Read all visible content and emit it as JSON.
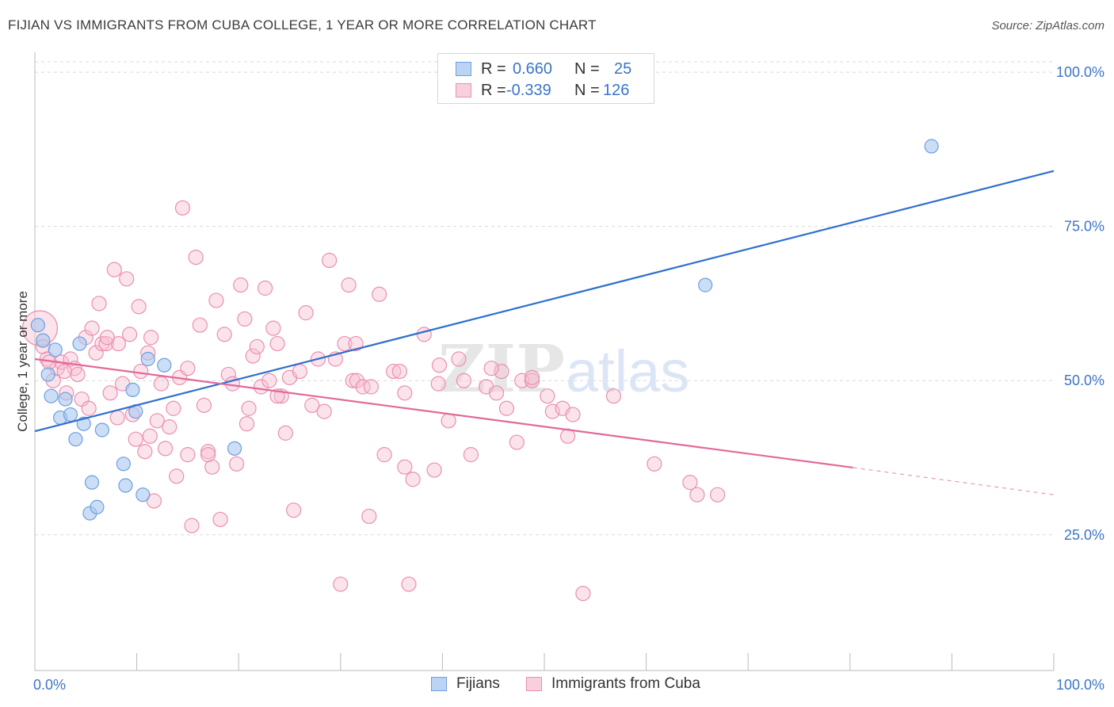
{
  "header": {
    "title": "FIJIAN VS IMMIGRANTS FROM CUBA COLLEGE, 1 YEAR OR MORE CORRELATION CHART",
    "source_label": "Source: ZipAtlas.com"
  },
  "watermark": {
    "zip": "ZIP",
    "atlas": "atlas"
  },
  "legend": {
    "rows": [
      {
        "r_label": "R =",
        "r_value": "0.660",
        "n_label": "N =",
        "n_value": "25"
      },
      {
        "r_label": "R =",
        "r_value": "-0.339",
        "n_label": "N =",
        "n_value": "126"
      }
    ]
  },
  "bottom_legend": {
    "series1": "Fijians",
    "series2": "Immigrants from Cuba"
  },
  "colors": {
    "blue_fill": "#a9c8f0",
    "blue_stroke": "#6d9fe0",
    "blue_line": "#2f6fcf",
    "pink_fill": "#f7c0d2",
    "pink_stroke": "#ea8faf",
    "pink_line": "#e2699a",
    "tick_label": "#3b74c9",
    "grid": "#d9d9d9"
  },
  "chart_data": {
    "type": "scatter",
    "title": "FIJIAN VS IMMIGRANTS FROM CUBA COLLEGE, 1 YEAR OR MORE CORRELATION CHART",
    "xlabel": "",
    "ylabel": "College, 1 year or more",
    "xlim": [
      0,
      100
    ],
    "ylim": [
      3,
      104
    ],
    "x_tick_labels": [
      "0.0%",
      "100.0%"
    ],
    "y_ticks": [
      25,
      50,
      75,
      100
    ],
    "y_tick_labels": [
      "25.0%",
      "50.0%",
      "75.0%",
      "100.0%"
    ],
    "grid": true,
    "series": [
      {
        "name": "Fijians",
        "r": 0.66,
        "n": 25,
        "points": [
          [
            0.3,
            59.0
          ],
          [
            0.8,
            56.5
          ],
          [
            1.3,
            51.0
          ],
          [
            1.6,
            47.5
          ],
          [
            2.0,
            55.0
          ],
          [
            2.5,
            44.0
          ],
          [
            3.0,
            47.0
          ],
          [
            3.5,
            44.5
          ],
          [
            4.0,
            40.5
          ],
          [
            4.4,
            56.0
          ],
          [
            4.8,
            43.0
          ],
          [
            5.6,
            33.5
          ],
          [
            5.4,
            28.5
          ],
          [
            6.1,
            29.5
          ],
          [
            6.6,
            42.0
          ],
          [
            8.7,
            36.5
          ],
          [
            8.9,
            33.0
          ],
          [
            9.6,
            48.5
          ],
          [
            9.9,
            45.0
          ],
          [
            10.6,
            31.5
          ],
          [
            11.1,
            53.5
          ],
          [
            12.7,
            52.5
          ],
          [
            19.6,
            39.0
          ],
          [
            65.8,
            65.5
          ],
          [
            88.0,
            88.0
          ]
        ],
        "trend": {
          "x": [
            0,
            100
          ],
          "y": [
            41.8,
            84.0
          ]
        }
      },
      {
        "name": "Immigrants from Cuba",
        "r": -0.339,
        "n": 126,
        "points": [
          [
            0.5,
            58.5
          ],
          [
            0.8,
            55.5
          ],
          [
            1.2,
            53.5
          ],
          [
            1.8,
            50.0
          ],
          [
            2.2,
            52.0
          ],
          [
            2.6,
            53.0
          ],
          [
            3.1,
            48.0
          ],
          [
            3.5,
            53.5
          ],
          [
            3.9,
            52.0
          ],
          [
            4.2,
            51.0
          ],
          [
            4.6,
            47.0
          ],
          [
            5.0,
            57.0
          ],
          [
            5.3,
            45.5
          ],
          [
            5.6,
            58.5
          ],
          [
            6.0,
            54.5
          ],
          [
            6.3,
            62.5
          ],
          [
            6.6,
            56.0
          ],
          [
            7.0,
            56.0
          ],
          [
            7.4,
            48.0
          ],
          [
            7.8,
            68.0
          ],
          [
            8.2,
            56.0
          ],
          [
            8.6,
            49.5
          ],
          [
            9.0,
            66.5
          ],
          [
            9.3,
            57.5
          ],
          [
            9.6,
            44.5
          ],
          [
            9.9,
            40.5
          ],
          [
            10.2,
            62.0
          ],
          [
            10.4,
            51.5
          ],
          [
            10.8,
            38.5
          ],
          [
            11.1,
            54.5
          ],
          [
            11.4,
            57.0
          ],
          [
            11.7,
            30.5
          ],
          [
            12.0,
            43.5
          ],
          [
            12.4,
            49.5
          ],
          [
            12.8,
            39.0
          ],
          [
            13.2,
            42.5
          ],
          [
            13.6,
            45.5
          ],
          [
            13.9,
            34.5
          ],
          [
            14.2,
            50.5
          ],
          [
            14.5,
            78.0
          ],
          [
            15.0,
            52.0
          ],
          [
            15.4,
            26.5
          ],
          [
            15.8,
            70.0
          ],
          [
            16.2,
            59.0
          ],
          [
            16.6,
            46.0
          ],
          [
            17.0,
            38.5
          ],
          [
            17.4,
            36.0
          ],
          [
            17.8,
            63.0
          ],
          [
            18.2,
            27.5
          ],
          [
            18.6,
            57.5
          ],
          [
            19.0,
            51.0
          ],
          [
            19.4,
            49.5
          ],
          [
            19.8,
            36.5
          ],
          [
            20.2,
            65.5
          ],
          [
            20.6,
            60.0
          ],
          [
            21.0,
            45.5
          ],
          [
            21.4,
            54.0
          ],
          [
            21.8,
            55.5
          ],
          [
            22.2,
            49.0
          ],
          [
            22.6,
            65.0
          ],
          [
            23.0,
            50.0
          ],
          [
            23.4,
            58.5
          ],
          [
            23.8,
            56.0
          ],
          [
            24.2,
            47.5
          ],
          [
            24.6,
            41.5
          ],
          [
            25.0,
            50.5
          ],
          [
            25.4,
            29.0
          ],
          [
            26.0,
            51.5
          ],
          [
            26.6,
            61.0
          ],
          [
            27.2,
            46.0
          ],
          [
            27.8,
            53.5
          ],
          [
            28.4,
            45.0
          ],
          [
            28.9,
            69.5
          ],
          [
            29.5,
            53.5
          ],
          [
            30.0,
            17.0
          ],
          [
            30.4,
            56.0
          ],
          [
            30.8,
            65.5
          ],
          [
            31.2,
            50.0
          ],
          [
            31.6,
            50.0
          ],
          [
            32.2,
            49.0
          ],
          [
            32.8,
            28.0
          ],
          [
            33.8,
            64.0
          ],
          [
            34.3,
            38.0
          ],
          [
            35.2,
            51.5
          ],
          [
            35.8,
            51.5
          ],
          [
            36.3,
            36.0
          ],
          [
            36.7,
            17.0
          ],
          [
            37.1,
            34.0
          ],
          [
            38.2,
            57.5
          ],
          [
            39.2,
            35.5
          ],
          [
            39.7,
            52.5
          ],
          [
            39.6,
            49.5
          ],
          [
            40.6,
            43.5
          ],
          [
            41.6,
            53.5
          ],
          [
            42.1,
            50.0
          ],
          [
            42.8,
            38.0
          ],
          [
            44.3,
            49.0
          ],
          [
            45.3,
            48.0
          ],
          [
            45.8,
            51.5
          ],
          [
            46.3,
            45.5
          ],
          [
            47.3,
            40.0
          ],
          [
            47.8,
            50.0
          ],
          [
            48.8,
            50.0
          ],
          [
            48.8,
            50.5
          ],
          [
            50.3,
            47.5
          ],
          [
            50.8,
            45.0
          ],
          [
            51.8,
            45.5
          ],
          [
            52.3,
            41.0
          ],
          [
            52.8,
            44.5
          ],
          [
            53.8,
            15.5
          ],
          [
            56.8,
            47.5
          ],
          [
            60.8,
            36.5
          ],
          [
            64.3,
            33.5
          ],
          [
            65.0,
            31.5
          ],
          [
            67.0,
            31.5
          ],
          [
            1.4,
            53.0
          ],
          [
            2.9,
            51.5
          ],
          [
            7.1,
            57.0
          ],
          [
            15.0,
            38.0
          ],
          [
            17.0,
            38.0
          ],
          [
            23.8,
            47.5
          ],
          [
            31.5,
            56.0
          ],
          [
            33.0,
            49.0
          ],
          [
            11.3,
            41.0
          ],
          [
            8.1,
            44.0
          ],
          [
            44.8,
            52.0
          ],
          [
            36.3,
            48.0
          ],
          [
            20.8,
            43.0
          ]
        ],
        "trend": {
          "x": [
            0,
            80.3
          ],
          "y": [
            53.5,
            35.9
          ]
        },
        "trend_dashed": {
          "x": [
            80.3,
            100
          ],
          "y": [
            35.9,
            31.5
          ]
        }
      }
    ]
  }
}
